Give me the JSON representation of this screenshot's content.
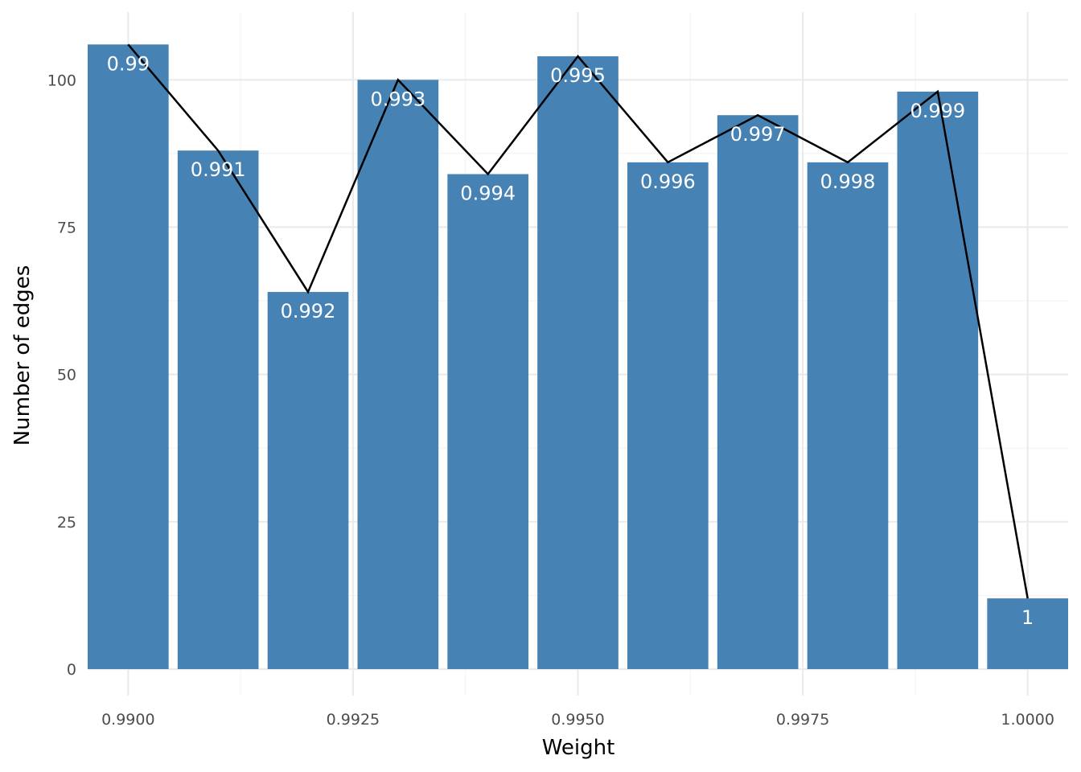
{
  "chart_data": {
    "type": "bar",
    "xlabel": "Weight",
    "ylabel": "Number of edges",
    "x": [
      0.99,
      0.991,
      0.992,
      0.993,
      0.994,
      0.995,
      0.996,
      0.997,
      0.998,
      0.999,
      1.0
    ],
    "values": [
      106,
      88,
      64,
      100,
      84,
      104,
      86,
      94,
      86,
      98,
      12
    ],
    "bar_labels": [
      "0.99",
      "0.991",
      "0.992",
      "0.993",
      "0.994",
      "0.995",
      "0.996",
      "0.997",
      "0.998",
      "0.999",
      "1"
    ],
    "overlay": "line",
    "xlim": [
      0.98955,
      1.00045
    ],
    "ylim": [
      -4.5,
      111.5
    ],
    "x_ticks": [
      0.99,
      0.9925,
      0.995,
      0.9975,
      1.0
    ],
    "x_tick_labels": [
      "0.9900",
      "0.9925",
      "0.9950",
      "0.9975",
      "1.0000"
    ],
    "y_ticks": [
      0,
      25,
      50,
      75,
      100
    ],
    "y_tick_labels": [
      "0",
      "25",
      "50",
      "75",
      "100"
    ],
    "grid": true,
    "colors": {
      "bar": "#4682b4",
      "line": "#000000",
      "bar_label": "#ffffff"
    }
  }
}
